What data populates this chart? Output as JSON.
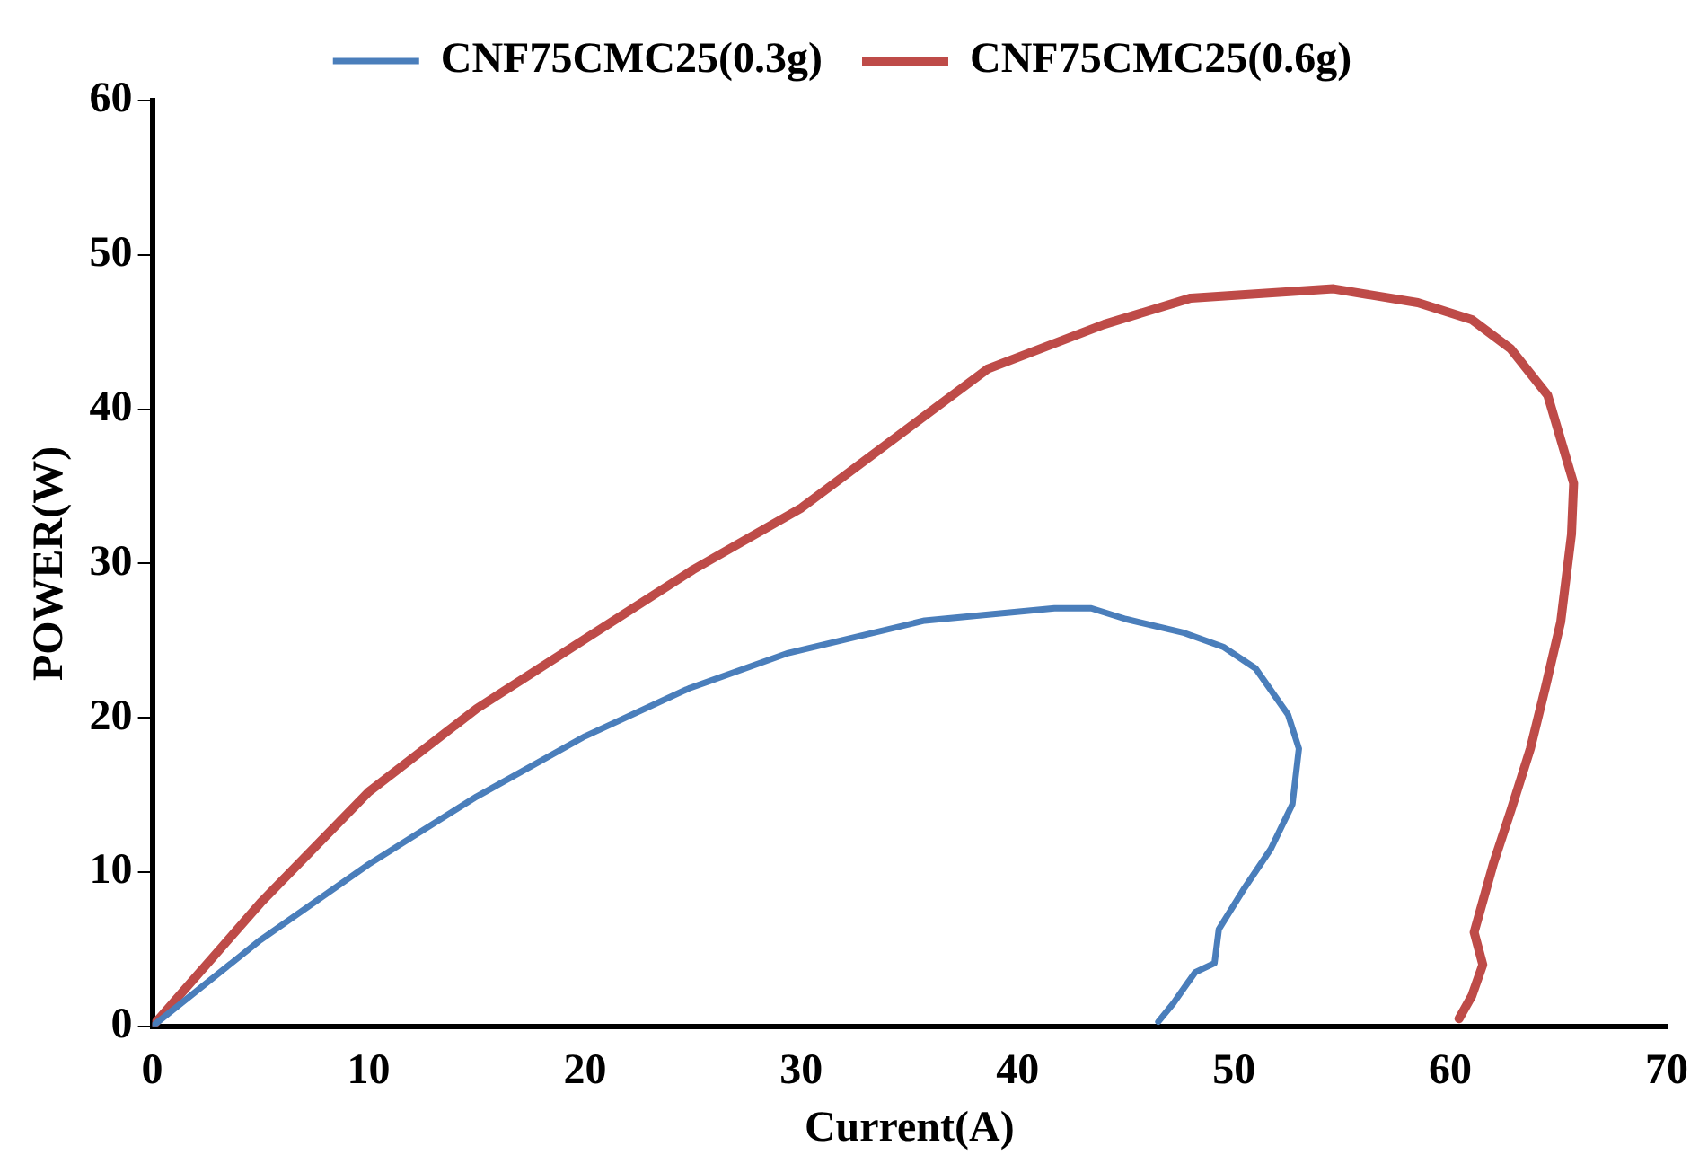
{
  "chart_data": {
    "type": "line",
    "xlabel": "Current(A)",
    "ylabel": "POWER(W)",
    "xlim": [
      0,
      70
    ],
    "xticks": [
      0,
      10,
      20,
      30,
      40,
      50,
      60,
      70
    ],
    "ylim": [
      0,
      60
    ],
    "yticks": [
      0,
      10,
      20,
      30,
      40,
      50,
      60
    ],
    "grid": false,
    "legend": "top",
    "marker": "none",
    "line_style": "solid",
    "series": [
      {
        "name": "CNF75CMC25(0.3g)",
        "color": "#4a7ebb",
        "x": [
          0,
          5,
          10,
          15,
          20,
          24.8,
          29.4,
          35.7,
          41.7,
          43.4,
          45,
          47.7,
          49.5,
          51,
          52.5,
          53,
          52.7,
          51.7,
          50.5,
          49.3,
          49.1,
          48.2,
          47.7,
          47.2,
          46.5
        ],
        "values": [
          0,
          5.6,
          10.5,
          14.9,
          18.8,
          21.9,
          24.2,
          26.3,
          27.1,
          27.1,
          26.4,
          25.5,
          24.6,
          23.2,
          20.2,
          18,
          14.4,
          11.5,
          9,
          6.3,
          4.1,
          3.5,
          2.5,
          1.5,
          0.3
        ]
      },
      {
        "name": "CNF75CMC25(0.6g)",
        "color": "#be4b48",
        "x": [
          0,
          5,
          10,
          15,
          20,
          25,
          30,
          38.6,
          44,
          48,
          54.6,
          58.5,
          61,
          62.8,
          64.5,
          65.7,
          65.6,
          65.1,
          64.4,
          63.7,
          62.8,
          62,
          61.1,
          61.5,
          61,
          60.4
        ],
        "values": [
          0,
          8,
          15.2,
          20.6,
          25.1,
          29.6,
          33.6,
          42.6,
          45.5,
          47.2,
          47.8,
          46.9,
          45.8,
          43.9,
          40.9,
          35.2,
          31.9,
          26.2,
          22,
          18,
          14,
          10.6,
          6.1,
          4,
          2,
          0.5
        ]
      }
    ]
  }
}
